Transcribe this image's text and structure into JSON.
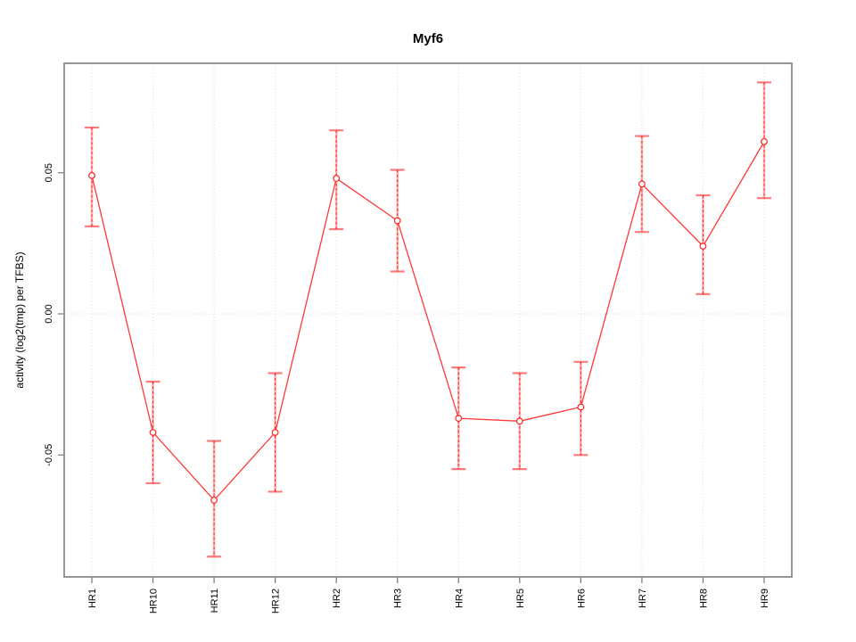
{
  "chart_data": {
    "type": "line",
    "title": "Myf6",
    "xlabel": "",
    "ylabel": "activity (log2(tmp) per TFBS)",
    "legend": null,
    "grid": "dotted vertical gridline at each category; dotted horizontal line at y=0",
    "categories": [
      "HR1",
      "HR10",
      "HR11",
      "HR12",
      "HR2",
      "HR3",
      "HR4",
      "HR5",
      "HR6",
      "HR7",
      "HR8",
      "HR9"
    ],
    "series": [
      {
        "name": "activity",
        "marker": "open-circle",
        "values": [
          0.049,
          -0.042,
          -0.066,
          -0.042,
          0.048,
          0.033,
          -0.037,
          -0.038,
          -0.033,
          0.046,
          0.024,
          0.061
        ],
        "error_low": [
          0.031,
          -0.06,
          -0.086,
          -0.063,
          0.03,
          0.015,
          -0.055,
          -0.055,
          -0.05,
          0.029,
          0.007,
          0.041
        ],
        "error_high": [
          0.066,
          -0.024,
          -0.045,
          -0.021,
          0.065,
          0.051,
          -0.019,
          -0.021,
          -0.017,
          0.063,
          0.042,
          0.082
        ]
      }
    ],
    "yticks": [
      -0.05,
      0,
      0.05
    ],
    "ytick_labels": [
      "-0.05",
      "0.00",
      "0.05"
    ],
    "ylim": [
      -0.093,
      0.089
    ],
    "colors": {
      "series": "#ff2222",
      "series_soft": "rgba(255,0,0,0.28)",
      "cap": "rgba(255,34,34,0.60)",
      "grid": "#d9d9d9",
      "tick": "#808080",
      "box": "#8a8a8a",
      "text": "#000000"
    }
  }
}
